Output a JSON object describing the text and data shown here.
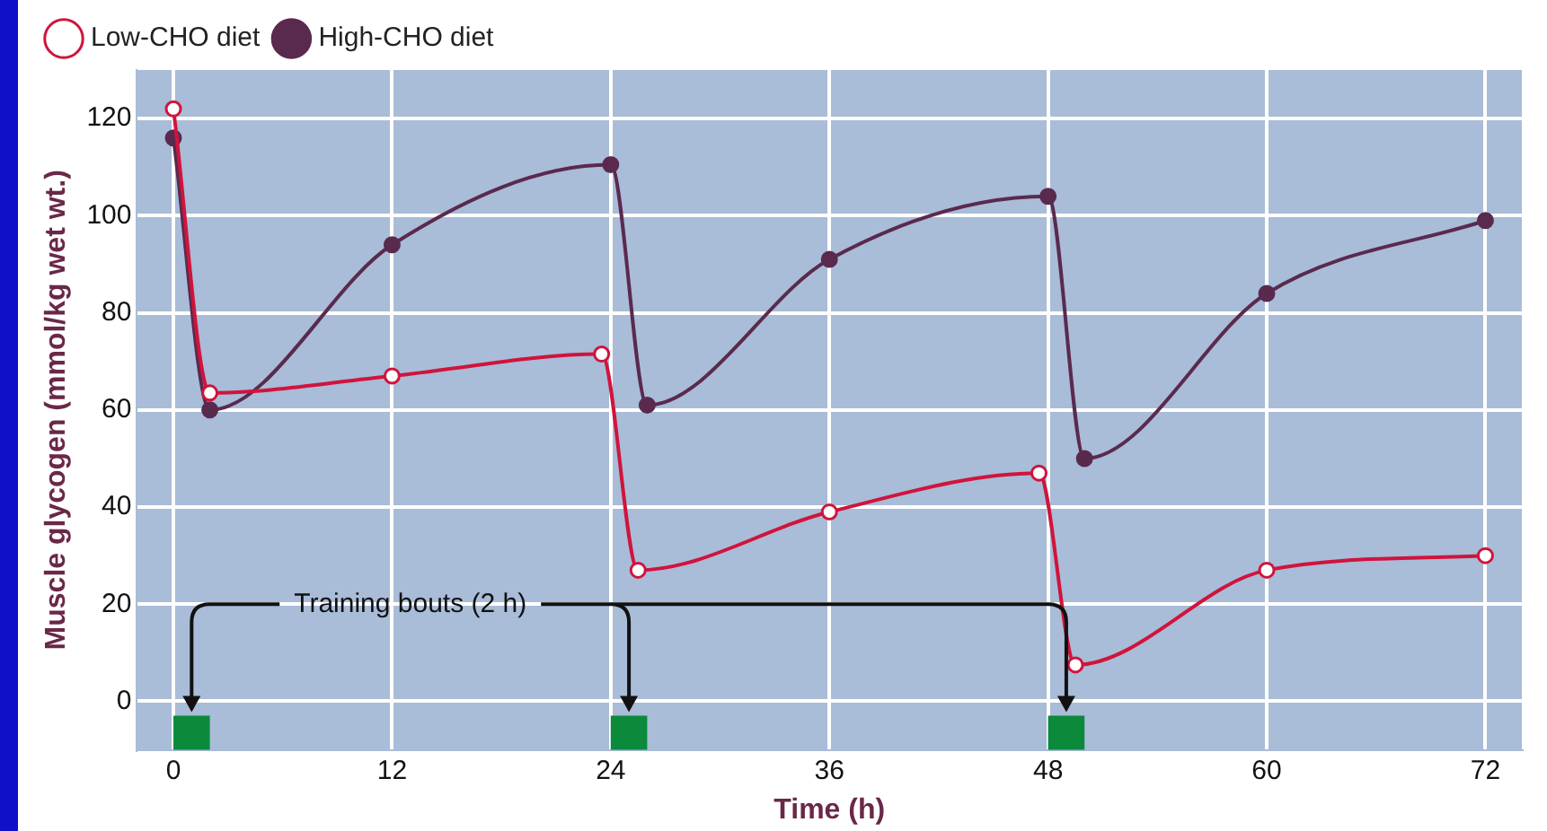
{
  "chart_data": {
    "type": "line",
    "xlabel": "Time (h)",
    "ylabel": "Muscle glycogen (mmol/kg wet wt.)",
    "series": [
      {
        "name": "Low-CHO diet",
        "color": "#d0143c",
        "marker": "circle",
        "x": [
          0,
          2,
          12,
          23.5,
          25.5,
          36,
          47.5,
          49.5,
          60,
          72
        ],
        "values": [
          122,
          63.5,
          67,
          71.5,
          27,
          39,
          47,
          7.5,
          27,
          30
        ]
      },
      {
        "name": "High-CHO diet",
        "color": "#5a2a4e",
        "marker": "circle",
        "x": [
          0,
          2,
          12,
          24,
          26,
          36,
          48,
          50,
          60,
          72
        ],
        "values": [
          116,
          60,
          94,
          110.5,
          61,
          91,
          104,
          50,
          84,
          99
        ]
      }
    ],
    "xlim": [
      -2,
      74
    ],
    "xticks": [
      0,
      12,
      24,
      36,
      48,
      60,
      72
    ],
    "ylim": [
      -10,
      130
    ],
    "yticks": [
      0,
      20,
      40,
      60,
      80,
      100,
      120
    ],
    "bands": [
      {
        "axis": "x",
        "from": 0,
        "to": 2,
        "color": "#0a8a3a"
      },
      {
        "axis": "x",
        "from": 24,
        "to": 26,
        "color": "#0a8a3a"
      },
      {
        "axis": "x",
        "from": 48,
        "to": 50,
        "color": "#0a8a3a"
      }
    ],
    "annotations": [
      "Training bouts (2 h)"
    ],
    "grid": true,
    "legend": "top left",
    "line_style": "solid"
  }
}
